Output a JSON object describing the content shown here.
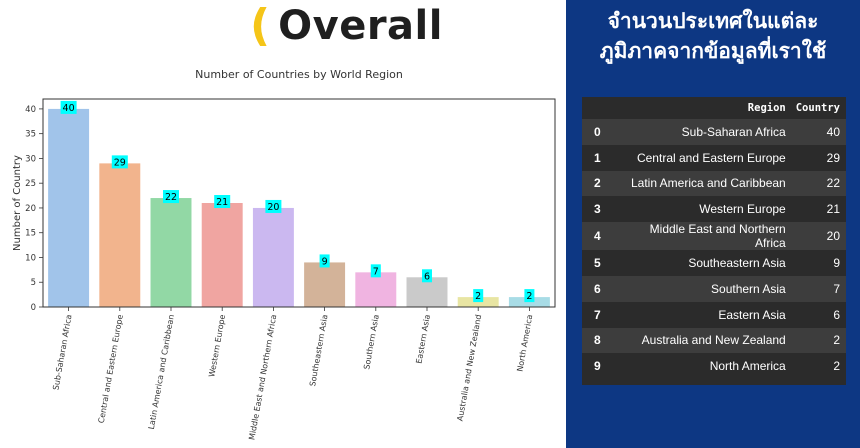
{
  "header": {
    "title": "Overall",
    "paren": "("
  },
  "panel": {
    "title_line1": "จำนวนประเทศในแต่ละ",
    "title_line2": "ภูมิภาคจากข้อมูลที่เราใช้"
  },
  "table": {
    "columns": [
      "",
      "Region",
      "Country"
    ],
    "rows": [
      {
        "index": "0",
        "region": "Sub-Saharan Africa",
        "count": "40"
      },
      {
        "index": "1",
        "region": "Central and Eastern Europe",
        "count": "29"
      },
      {
        "index": "2",
        "region": "Latin America and Caribbean",
        "count": "22"
      },
      {
        "index": "3",
        "region": "Western Europe",
        "count": "21"
      },
      {
        "index": "4",
        "region": "Middle East and Northern Africa",
        "count": "20"
      },
      {
        "index": "5",
        "region": "Southeastern Asia",
        "count": "9"
      },
      {
        "index": "6",
        "region": "Southern Asia",
        "count": "7"
      },
      {
        "index": "7",
        "region": "Eastern Asia",
        "count": "6"
      },
      {
        "index": "8",
        "region": "Australia and New Zealand",
        "count": "2"
      },
      {
        "index": "9",
        "region": "North America",
        "count": "2"
      }
    ]
  },
  "chart_data": {
    "type": "bar",
    "title": "Number of Countries by World Region",
    "xlabel": "",
    "ylabel": "Number of Country",
    "categories": [
      "Sub-Saharan Africa",
      "Central and Eastern Europe",
      "Latin America and Caribbean",
      "Western Europe",
      "Middle East and Northern Africa",
      "Southeastern Asia",
      "Southern Asia",
      "Eastern Asia",
      "Australia and New Zealand",
      "North America"
    ],
    "values": [
      40,
      29,
      22,
      21,
      20,
      9,
      7,
      6,
      2,
      2
    ],
    "colors": [
      "#a1c4ea",
      "#f2b48d",
      "#92d8a5",
      "#f0a5a1",
      "#cbb8f0",
      "#d3b399",
      "#f0b4e1",
      "#cacaca",
      "#e8e5a3",
      "#a8dce6"
    ],
    "label_bg": "#00ffff",
    "ylim": [
      0,
      42
    ],
    "yticks": [
      0,
      5,
      10,
      15,
      20,
      25,
      30,
      35,
      40
    ],
    "grid": false,
    "legend": "none"
  }
}
